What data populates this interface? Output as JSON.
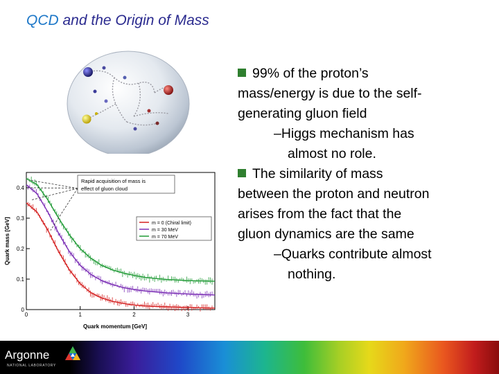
{
  "title": {
    "accent": "QCD",
    "rest": " and the Origin of Mass"
  },
  "bullets": {
    "b1": [
      "99% of the proton’s",
      "mass/energy is due to the self-",
      "generating gluon field"
    ],
    "b1_sub": [
      "–Higgs mechanism has",
      "almost no role."
    ],
    "b2": [
      "The similarity of mass",
      "between the proton and neutron",
      "arises from the fact that the",
      "gluon dynamics are the same"
    ],
    "b2_sub": [
      "–Quarks contribute almost",
      "nothing."
    ]
  },
  "footer": {
    "logo": "Argonne",
    "logo_sub": "NATIONAL LABORATORY"
  },
  "colors": {
    "title": "#2b2b8f",
    "accent": "#1e78c8",
    "bullet": "#2f7f2f"
  },
  "chart_data": {
    "type": "line",
    "xlabel": "Quark momentum [GeV]",
    "ylabel": "Quark mass [GeV]",
    "xlim": [
      0,
      3.5
    ],
    "ylim": [
      0,
      0.45
    ],
    "xticks": [
      "0",
      "1",
      "2",
      "3"
    ],
    "yticks": [
      "0",
      "0.1",
      "0.2",
      "0.3",
      "0.4"
    ],
    "annotation": [
      "Rapid acquisition of mass is",
      "effect of gluon cloud"
    ],
    "legend_position": "center-right",
    "series": [
      {
        "name": "m = 0 (Chiral limit)",
        "color": "#d42020",
        "x": [
          0,
          0.2,
          0.4,
          0.6,
          0.8,
          1.0,
          1.2,
          1.4,
          1.6,
          1.8,
          2.0,
          2.2,
          2.4,
          2.6,
          2.8,
          3.0,
          3.2,
          3.5
        ],
        "y": [
          0.35,
          0.32,
          0.26,
          0.19,
          0.13,
          0.085,
          0.055,
          0.038,
          0.027,
          0.02,
          0.015,
          0.012,
          0.01,
          0.009,
          0.008,
          0.007,
          0.006,
          0.005
        ]
      },
      {
        "name": "m = 30 MeV",
        "color": "#7b2fb5",
        "x": [
          0,
          0.2,
          0.4,
          0.6,
          0.8,
          1.0,
          1.2,
          1.4,
          1.6,
          1.8,
          2.0,
          2.2,
          2.4,
          2.6,
          2.8,
          3.0,
          3.2,
          3.5
        ],
        "y": [
          0.41,
          0.38,
          0.32,
          0.25,
          0.19,
          0.145,
          0.115,
          0.095,
          0.082,
          0.072,
          0.066,
          0.061,
          0.058,
          0.055,
          0.053,
          0.051,
          0.05,
          0.048
        ]
      },
      {
        "name": "m = 70 MeV",
        "color": "#1f9a35",
        "x": [
          0,
          0.2,
          0.4,
          0.6,
          0.8,
          1.0,
          1.2,
          1.4,
          1.6,
          1.8,
          2.0,
          2.2,
          2.4,
          2.6,
          2.8,
          3.0,
          3.2,
          3.5
        ],
        "y": [
          0.43,
          0.41,
          0.36,
          0.3,
          0.245,
          0.2,
          0.168,
          0.145,
          0.13,
          0.12,
          0.112,
          0.106,
          0.102,
          0.099,
          0.097,
          0.095,
          0.094,
          0.093
        ]
      }
    ]
  }
}
